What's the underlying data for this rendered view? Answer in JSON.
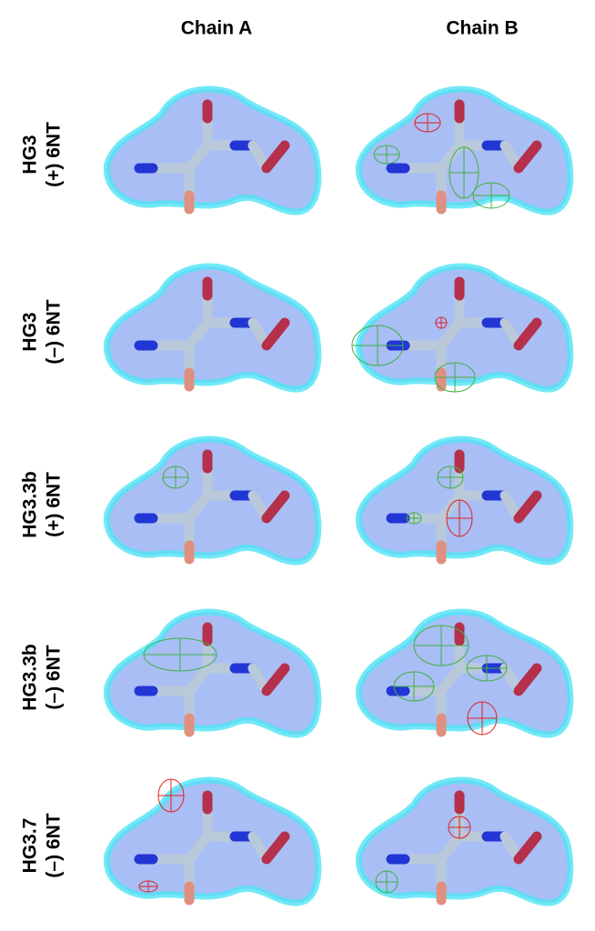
{
  "columns": [
    "Chain A",
    "Chain B"
  ],
  "rows": [
    {
      "name": "HG3",
      "condition": "(+) 6NT"
    },
    {
      "name": "HG3",
      "condition": "(–) 6NT"
    },
    {
      "name": "HG3.3b",
      "condition": "(+) 6NT"
    },
    {
      "name": "HG3.3b",
      "condition": "(–) 6NT"
    },
    {
      "name": "HG3.7",
      "condition": "(–) 6NT"
    }
  ]
}
